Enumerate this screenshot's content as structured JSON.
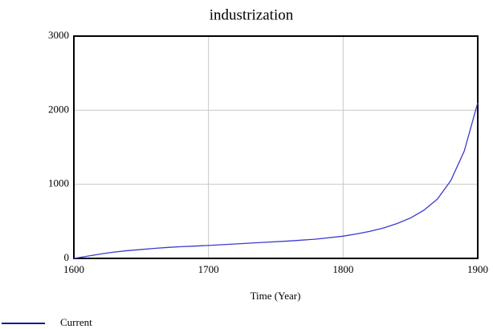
{
  "chart_data": {
    "type": "line",
    "title": "industrization",
    "x_label": "Time (Year)",
    "x": [
      1600,
      1610,
      1620,
      1630,
      1640,
      1650,
      1660,
      1670,
      1680,
      1690,
      1700,
      1720,
      1740,
      1760,
      1780,
      1800,
      1810,
      1820,
      1830,
      1840,
      1850,
      1860,
      1870,
      1880,
      1890,
      1900
    ],
    "series": [
      {
        "name": "Current",
        "color": "#3b3bd0",
        "legend_color": "#1a1a8c",
        "values": [
          0,
          30,
          60,
          85,
          105,
          120,
          135,
          148,
          158,
          166,
          175,
          195,
          215,
          235,
          260,
          300,
          330,
          365,
          410,
          470,
          545,
          650,
          800,
          1050,
          1450,
          2100
        ]
      }
    ],
    "xlim": [
      1600,
      1900
    ],
    "xticks": [
      1600,
      1700,
      1800,
      1900
    ],
    "ylim": [
      0,
      3000
    ],
    "yticks": [
      0,
      1000,
      2000,
      3000
    ],
    "grid": true,
    "legend": "bottom-left"
  }
}
